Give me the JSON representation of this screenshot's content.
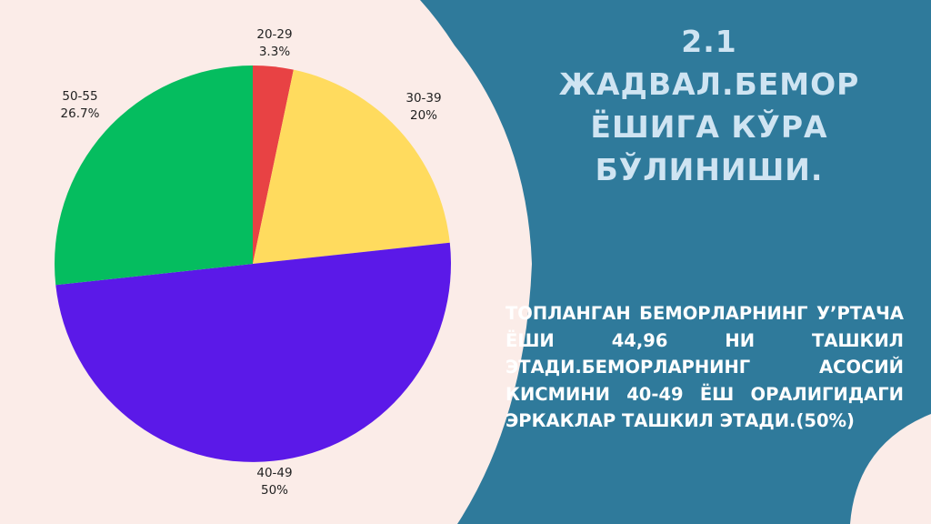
{
  "slide": {
    "title": "2.1 ЖАДВАЛ.БЕМОР ЁШИГА КЎРА БЎЛИНИШИ.",
    "title_lines": [
      "2.1",
      "ЖАДВАЛ.БЕМОР",
      "ЁШИГА КЎРА",
      "БЎЛИНИШИ."
    ],
    "body": "ТОПЛАНГАН БЕМОРЛАРНИНГ У’РТАЧА ЁШИ 44,96 НИ ТАШКИЛ ЭТАДИ.БЕМОРЛАРНИНГ АСОСИЙ КИСМИНИ 40-49 ЁШ ОРАЛИГИДАГИ ЭРКАКЛАР ТАШКИЛ ЭТАДИ.(50%)"
  },
  "colors": {
    "background": "#fbece8",
    "panel": "#2f7a9b",
    "title_text": "#cfe4f2",
    "body_text": "#ffffff"
  },
  "chart_data": {
    "type": "pie",
    "categories": [
      "20-29",
      "30-39",
      "40-49",
      "50-55"
    ],
    "values": [
      3.3,
      20,
      50,
      26.7
    ],
    "value_labels": [
      "3.3%",
      "20%",
      "50%",
      "26.7%"
    ],
    "colors": [
      "#e84244",
      "#ffdb5e",
      "#5b19e8",
      "#05bd5f"
    ],
    "start_angle": "12 o'clock",
    "direction": "clockwise",
    "labels_outside": true
  }
}
